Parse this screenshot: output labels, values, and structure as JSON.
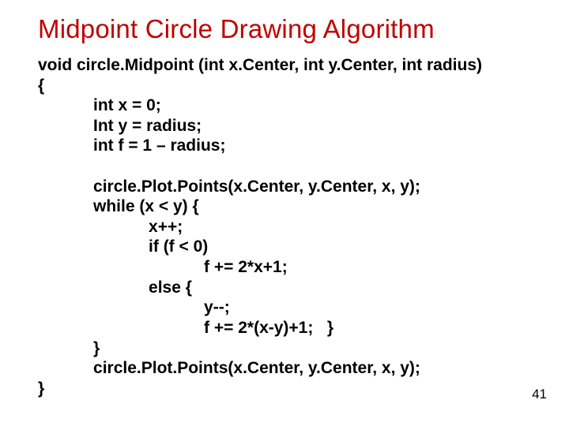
{
  "title": "Midpoint Circle Drawing Algorithm",
  "title_color": "#c00000",
  "page_number": "41",
  "code": {
    "l1": "void circle.Midpoint (int x.Center, int y.Center, int radius)",
    "l2": "{",
    "l3": "            int x = 0;",
    "l4": "            Int y = radius;",
    "l5": "            int f = 1 – radius;",
    "l6": "",
    "l7": "            circle.Plot.Points(x.Center, y.Center, x, y);",
    "l8": "            while (x < y) {",
    "l9": "                        x++;",
    "l10": "                        if (f < 0)",
    "l11": "                                    f += 2*x+1;",
    "l12": "                        else {",
    "l13": "                                    y--;",
    "l14": "                                    f += 2*(x-y)+1;   }",
    "l15": "            }",
    "l16": "            circle.Plot.Points(x.Center, y.Center, x, y);",
    "l17": "}"
  }
}
